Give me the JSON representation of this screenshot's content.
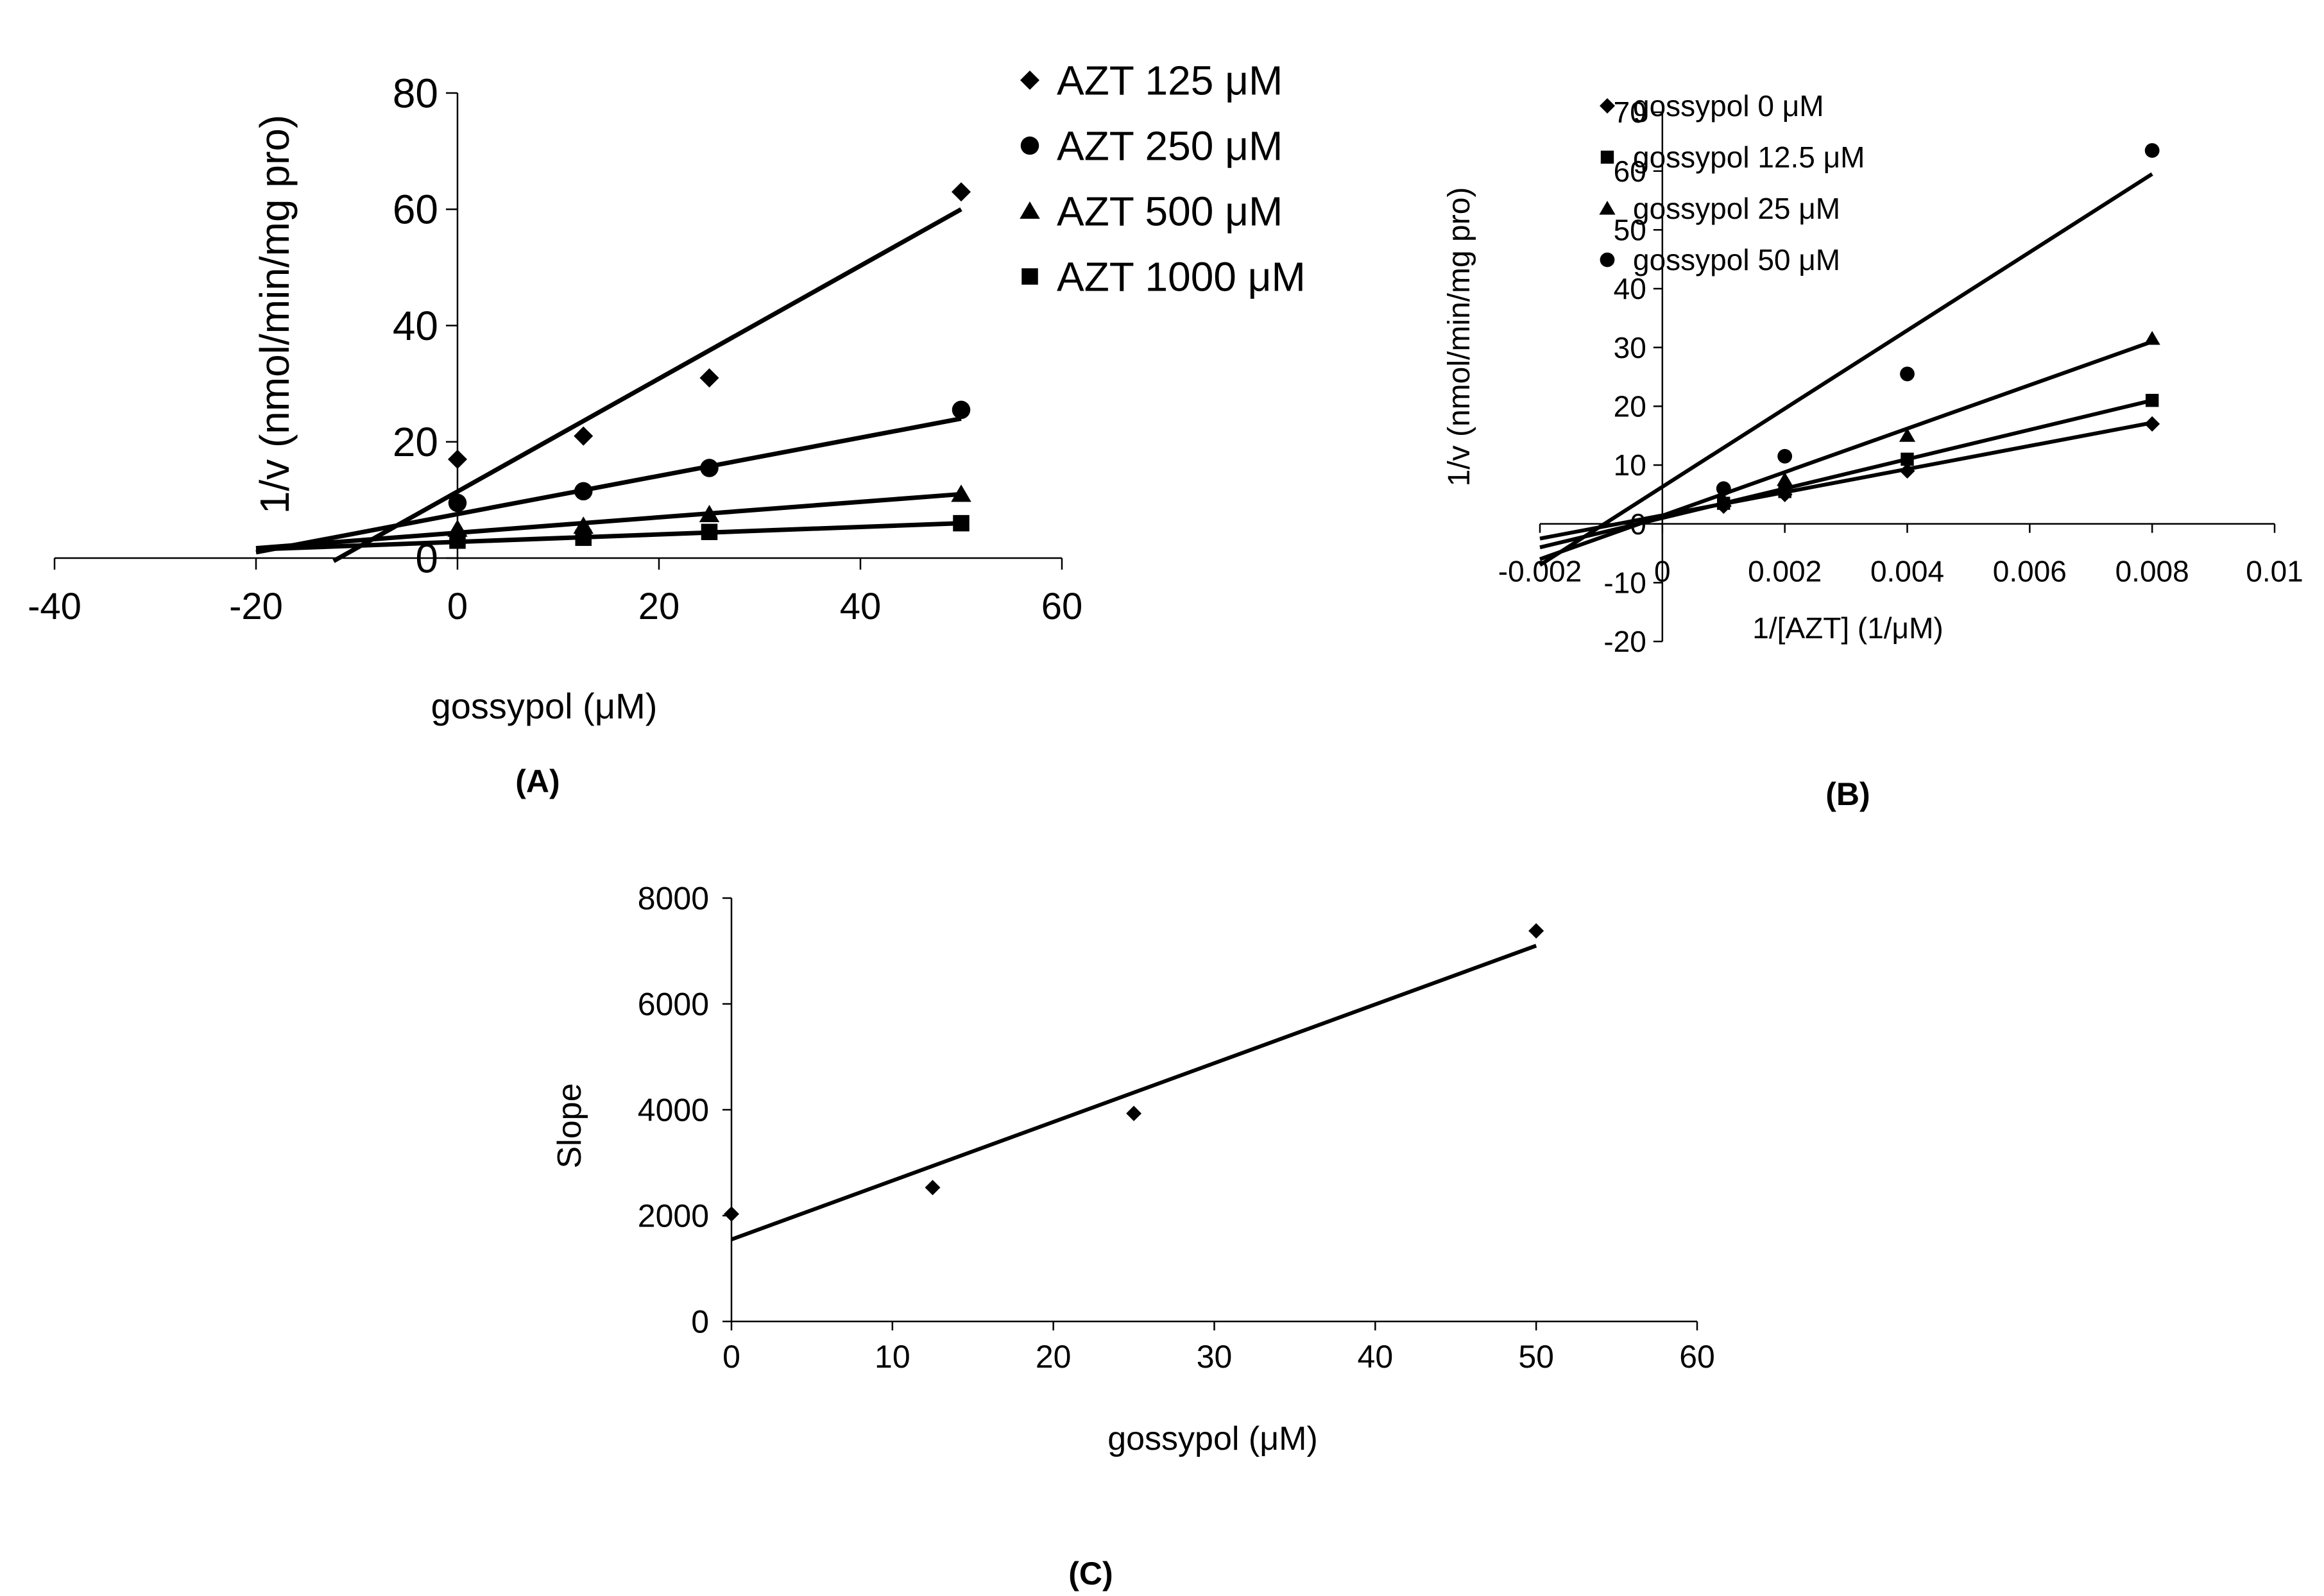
{
  "colors": {
    "ink": "#000000",
    "background": "#ffffff"
  },
  "chart_data": [
    {
      "id": "A",
      "panel_label": "(A)",
      "type": "scatter",
      "title": "",
      "xlabel": "gossypol (μM)",
      "ylabel": "1/v (nmol/min/mg pro)",
      "xlim": [
        -40,
        60
      ],
      "ylim": [
        0,
        80
      ],
      "xticks": [
        -40,
        -20,
        0,
        20,
        40,
        60
      ],
      "yticks": [
        0,
        20,
        40,
        60,
        80
      ],
      "xtick_labels": [
        "-40",
        "-20",
        "0",
        "20",
        "40",
        "60"
      ],
      "ytick_labels": [
        "0",
        "20",
        "40",
        "60",
        "80"
      ],
      "legend_position": "top-right",
      "series": [
        {
          "name": "AZT 125 μM",
          "marker": "diamond",
          "x": [
            0,
            12.5,
            25,
            50
          ],
          "y": [
            17,
            21,
            31,
            63
          ],
          "fit": {
            "x": [
              -12.3,
              50
            ],
            "y": [
              -0.5,
              60
            ]
          }
        },
        {
          "name": "AZT 250 μM",
          "marker": "circle",
          "x": [
            0,
            12.5,
            25,
            50
          ],
          "y": [
            9.5,
            11.5,
            15.5,
            25.5
          ],
          "fit": {
            "x": [
              -20,
              50
            ],
            "y": [
              1,
              24
            ]
          }
        },
        {
          "name": "AZT 500 μM",
          "marker": "triangle",
          "x": [
            0,
            12.5,
            25,
            50
          ],
          "y": [
            5,
            5.5,
            7.5,
            11
          ],
          "fit": {
            "x": [
              -20,
              50
            ],
            "y": [
              1.7,
              11
            ]
          }
        },
        {
          "name": "AZT 1000 μM",
          "marker": "square",
          "x": [
            0,
            12.5,
            25,
            50
          ],
          "y": [
            3,
            3.5,
            4.5,
            6
          ],
          "fit": {
            "x": [
              -20,
              50
            ],
            "y": [
              1.5,
              6
            ]
          }
        }
      ]
    },
    {
      "id": "B",
      "panel_label": "(B)",
      "type": "scatter",
      "title": "",
      "xlabel": "1/[AZT] (1/μM)",
      "ylabel": "1/v (nmol/min/mg pro)",
      "xlim": [
        -0.002,
        0.01
      ],
      "ylim": [
        -20,
        70
      ],
      "xticks": [
        -0.002,
        0,
        0.002,
        0.004,
        0.006,
        0.008,
        0.01
      ],
      "yticks": [
        -20,
        -10,
        0,
        10,
        20,
        30,
        40,
        50,
        60,
        70
      ],
      "xtick_labels": [
        "-0.002",
        "0",
        "0.002",
        "0.004",
        "0.006",
        "0.008",
        "0.01"
      ],
      "ytick_labels": [
        "-20",
        "-10",
        "0",
        "10",
        "20",
        "30",
        "40",
        "50",
        "60",
        "70"
      ],
      "legend_position": "top-left",
      "series": [
        {
          "name": "gossypol 0 μM",
          "marker": "diamond",
          "x": [
            0.001,
            0.002,
            0.004,
            0.008
          ],
          "y": [
            3,
            5,
            9,
            17
          ],
          "fit": {
            "x": [
              -0.002,
              0.008
            ],
            "y": [
              -2.5,
              17.2
            ]
          }
        },
        {
          "name": "gossypol 12.5 μM",
          "marker": "square",
          "x": [
            0.001,
            0.002,
            0.004,
            0.008
          ],
          "y": [
            3.5,
            5.5,
            11,
            21
          ],
          "fit": {
            "x": [
              -0.002,
              0.008
            ],
            "y": [
              -4,
              21
            ]
          }
        },
        {
          "name": "gossypol 25 μM",
          "marker": "triangle",
          "x": [
            0.001,
            0.002,
            0.004,
            0.008
          ],
          "y": [
            4,
            7.5,
            15,
            31.5
          ],
          "fit": {
            "x": [
              -0.002,
              0.008
            ],
            "y": [
              -6,
              31
            ]
          }
        },
        {
          "name": "gossypol 50 μM",
          "marker": "circle",
          "x": [
            0.001,
            0.002,
            0.004,
            0.008
          ],
          "y": [
            6,
            11.5,
            25.5,
            63.5
          ],
          "fit": {
            "x": [
              -0.002,
              0.008
            ],
            "y": [
              -7,
              59.5
            ]
          }
        }
      ]
    },
    {
      "id": "C",
      "panel_label": "(C)",
      "type": "scatter",
      "title": "",
      "xlabel": "gossypol (μM)",
      "ylabel": "Slope",
      "xlim": [
        0,
        60
      ],
      "ylim": [
        0,
        8000
      ],
      "xticks": [
        0,
        10,
        20,
        30,
        40,
        50,
        60
      ],
      "yticks": [
        0,
        2000,
        4000,
        6000,
        8000
      ],
      "xtick_labels": [
        "0",
        "10",
        "20",
        "30",
        "40",
        "50",
        "60"
      ],
      "ytick_labels": [
        "0",
        "2000",
        "4000",
        "6000",
        "8000"
      ],
      "legend_position": "none",
      "series": [
        {
          "name": "Slope",
          "marker": "diamond",
          "x": [
            0,
            12.5,
            25,
            50
          ],
          "y": [
            2030,
            2530,
            3930,
            7380
          ],
          "fit": {
            "x": [
              0,
              50
            ],
            "y": [
              1550,
              7100
            ]
          }
        }
      ]
    }
  ]
}
